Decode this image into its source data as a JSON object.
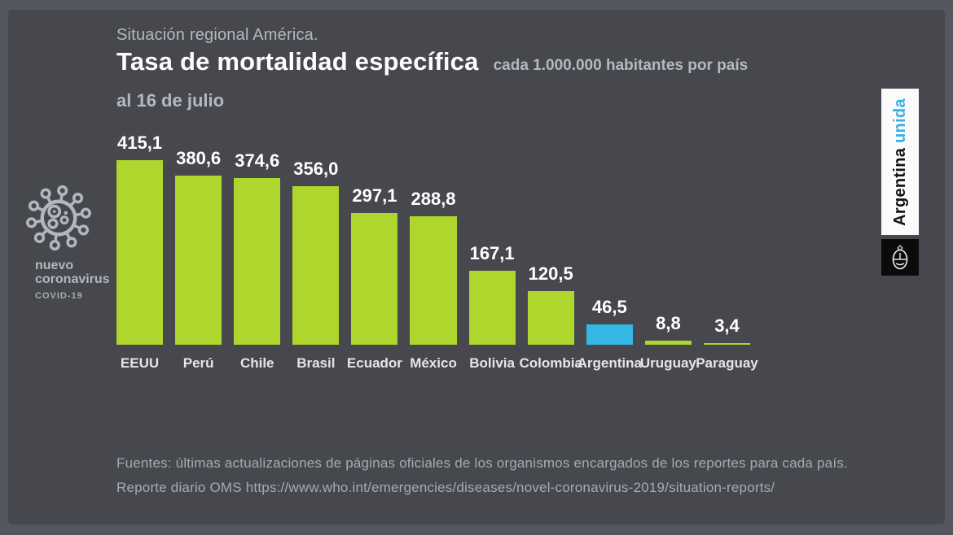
{
  "header": {
    "kicker": "Situación regional América.",
    "title": "Tasa de mortalidad específica",
    "title_suffix": "cada 1.000.000 habitantes por país",
    "subtitle": "al 16 de julio"
  },
  "sidebar": {
    "icon": "coronavirus-icon",
    "label_line1": "nuevo",
    "label_line2": "coronavirus",
    "label_line3": "COVID-19"
  },
  "banner": {
    "text_black": "Argentina",
    "text_blue": "unida",
    "emblem": "argentina-coat-of-arms"
  },
  "footer": {
    "line1": "Fuentes: últimas actualizaciones de páginas oficiales de los organismos encargados de los reportes para cada país.",
    "line2": "Reporte diario OMS https://www.who.int/emergencies/diseases/novel-coronavirus-2019/situation-reports/"
  },
  "chart_data": {
    "type": "bar",
    "title": "Tasa de mortalidad específica cada 1.000.000 habitantes por país, al 16 de julio",
    "categories": [
      "EEUU",
      "Perú",
      "Chile",
      "Brasil",
      "Ecuador",
      "México",
      "Bolivia",
      "Colombia",
      "Argentina",
      "Uruguay",
      "Paraguay"
    ],
    "values": [
      415.1,
      380.6,
      374.6,
      356.0,
      297.1,
      288.8,
      167.1,
      120.5,
      46.5,
      8.8,
      3.4
    ],
    "value_labels": [
      "415,1",
      "380,6",
      "374,6",
      "356,0",
      "297,1",
      "288,8",
      "167,1",
      "120,5",
      "46,5",
      "8,8",
      "3,4"
    ],
    "xlabel": "",
    "ylabel": "",
    "ylim": [
      0,
      430
    ],
    "grid": false,
    "legend": null,
    "highlight_category": "Argentina",
    "bar_color": "#aed62c",
    "highlight_color": "#35b6e3"
  },
  "colors": {
    "outer_background": "#54575d",
    "panel_background": "#46484e",
    "muted_text": "#b5b8be",
    "footer_text": "#a6aab1",
    "value_text": "#ffffff",
    "banner_blue": "#3bb0e2"
  }
}
